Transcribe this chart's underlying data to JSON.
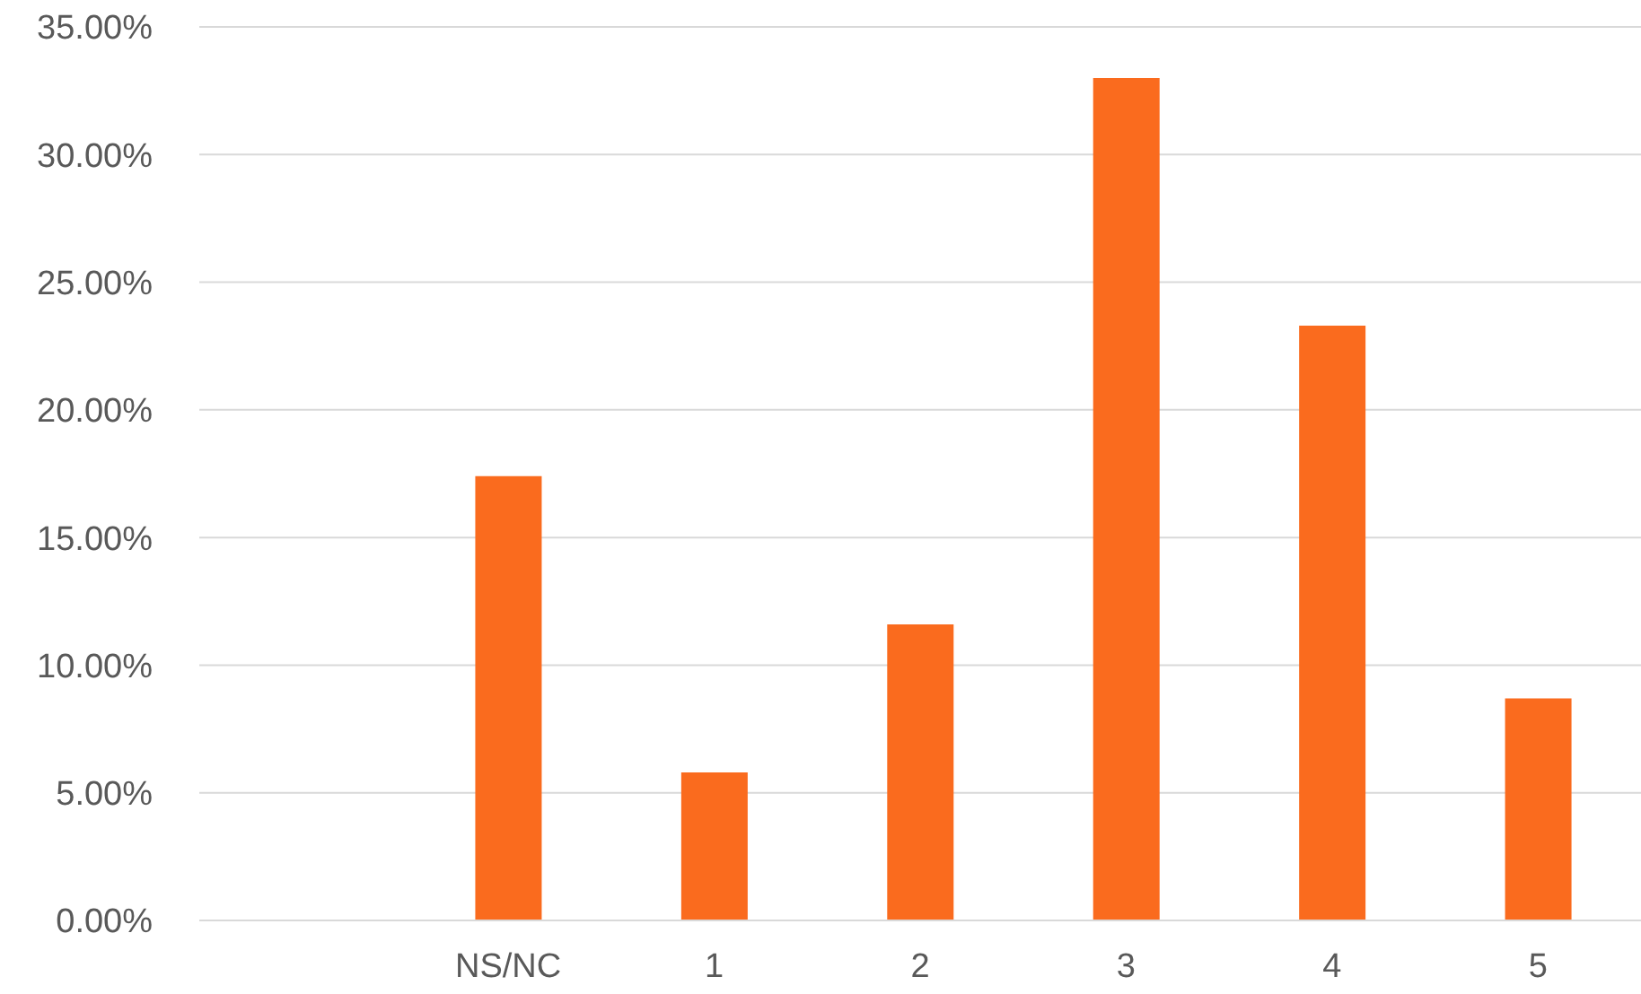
{
  "chart_data": {
    "type": "bar",
    "categories": [
      null,
      "NS/NC",
      "1",
      "2",
      "3",
      "4",
      "5"
    ],
    "values": [
      null,
      17.4,
      5.8,
      11.6,
      33.0,
      23.3,
      8.7
    ],
    "color": "#fa6b1e",
    "ylim": [
      0,
      35
    ],
    "yticks": [
      {
        "value": 0,
        "label": "0.00%"
      },
      {
        "value": 5,
        "label": "5.00%"
      },
      {
        "value": 10,
        "label": "10.00%"
      },
      {
        "value": 15,
        "label": "15.00%"
      },
      {
        "value": 20,
        "label": "20.00%"
      },
      {
        "value": 25,
        "label": "25.00%"
      },
      {
        "value": 30,
        "label": "30.00%"
      },
      {
        "value": 35,
        "label": "35.00%"
      }
    ],
    "grid": "y"
  }
}
